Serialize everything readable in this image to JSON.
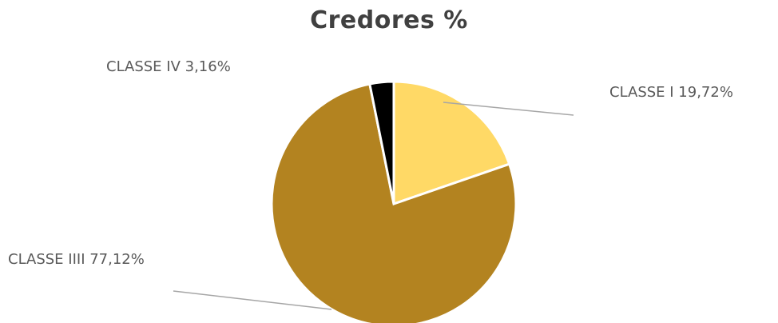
{
  "chart_data": {
    "type": "pie",
    "title": "Credores %",
    "slices": [
      {
        "name": "CLASSE I",
        "value": 19.72,
        "label": "19,72%",
        "color": "#FFD966"
      },
      {
        "name": "CLASSE IIII",
        "value": 77.12,
        "label": "77,12%",
        "color": "#B38320"
      },
      {
        "name": "CLASSE IV",
        "value": 3.16,
        "label": "3,16%",
        "color": "#000000"
      }
    ],
    "start_angle": "12 o'clock",
    "direction": "clockwise",
    "legend": "none"
  }
}
